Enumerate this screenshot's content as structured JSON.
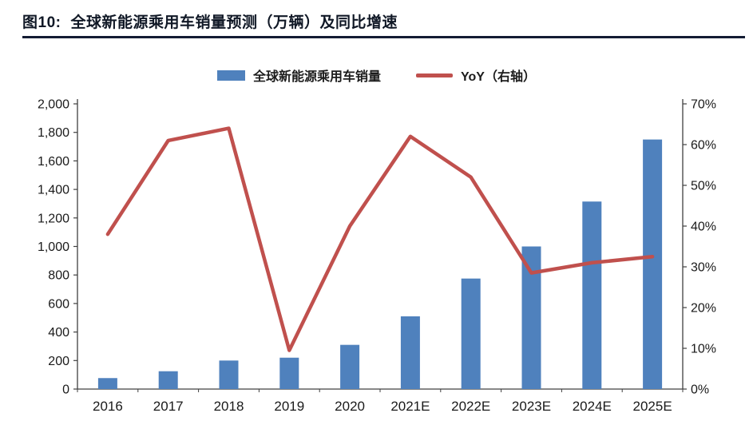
{
  "header": {
    "title_prefix": "图10:",
    "title": "全球新能源乘用车销量预测（万辆）及同比增速"
  },
  "legend": {
    "bar_label": "全球新能源乘用车销量",
    "line_label": "YoY（右轴）"
  },
  "colors": {
    "bar": "#4f81bd",
    "line": "#c0504d",
    "axis": "#404040",
    "title": "#101826",
    "header_rule": "#131c33"
  },
  "chart_data": {
    "type": "bar+line",
    "title": "全球新能源乘用车销量预测（万辆）及同比增速",
    "categories": [
      "2016",
      "2017",
      "2018",
      "2019",
      "2020",
      "2021E",
      "2022E",
      "2023E",
      "2024E",
      "2025E"
    ],
    "series": [
      {
        "name": "全球新能源乘用车销量",
        "type": "bar",
        "axis": "left",
        "values": [
          77,
          125,
          200,
          220,
          310,
          510,
          775,
          1000,
          1315,
          1750
        ]
      },
      {
        "name": "YoY（右轴）",
        "type": "line",
        "axis": "right",
        "values": [
          38,
          61,
          64,
          9.5,
          40,
          62,
          52,
          28.5,
          31,
          32.5
        ]
      }
    ],
    "left_axis": {
      "min": 0,
      "max": 2000,
      "step": 200,
      "tick_format": "thousands"
    },
    "right_axis": {
      "min": 0,
      "max": 70,
      "step": 10,
      "tick_format": "percent"
    },
    "grid": false,
    "legend_position": "top-center"
  }
}
